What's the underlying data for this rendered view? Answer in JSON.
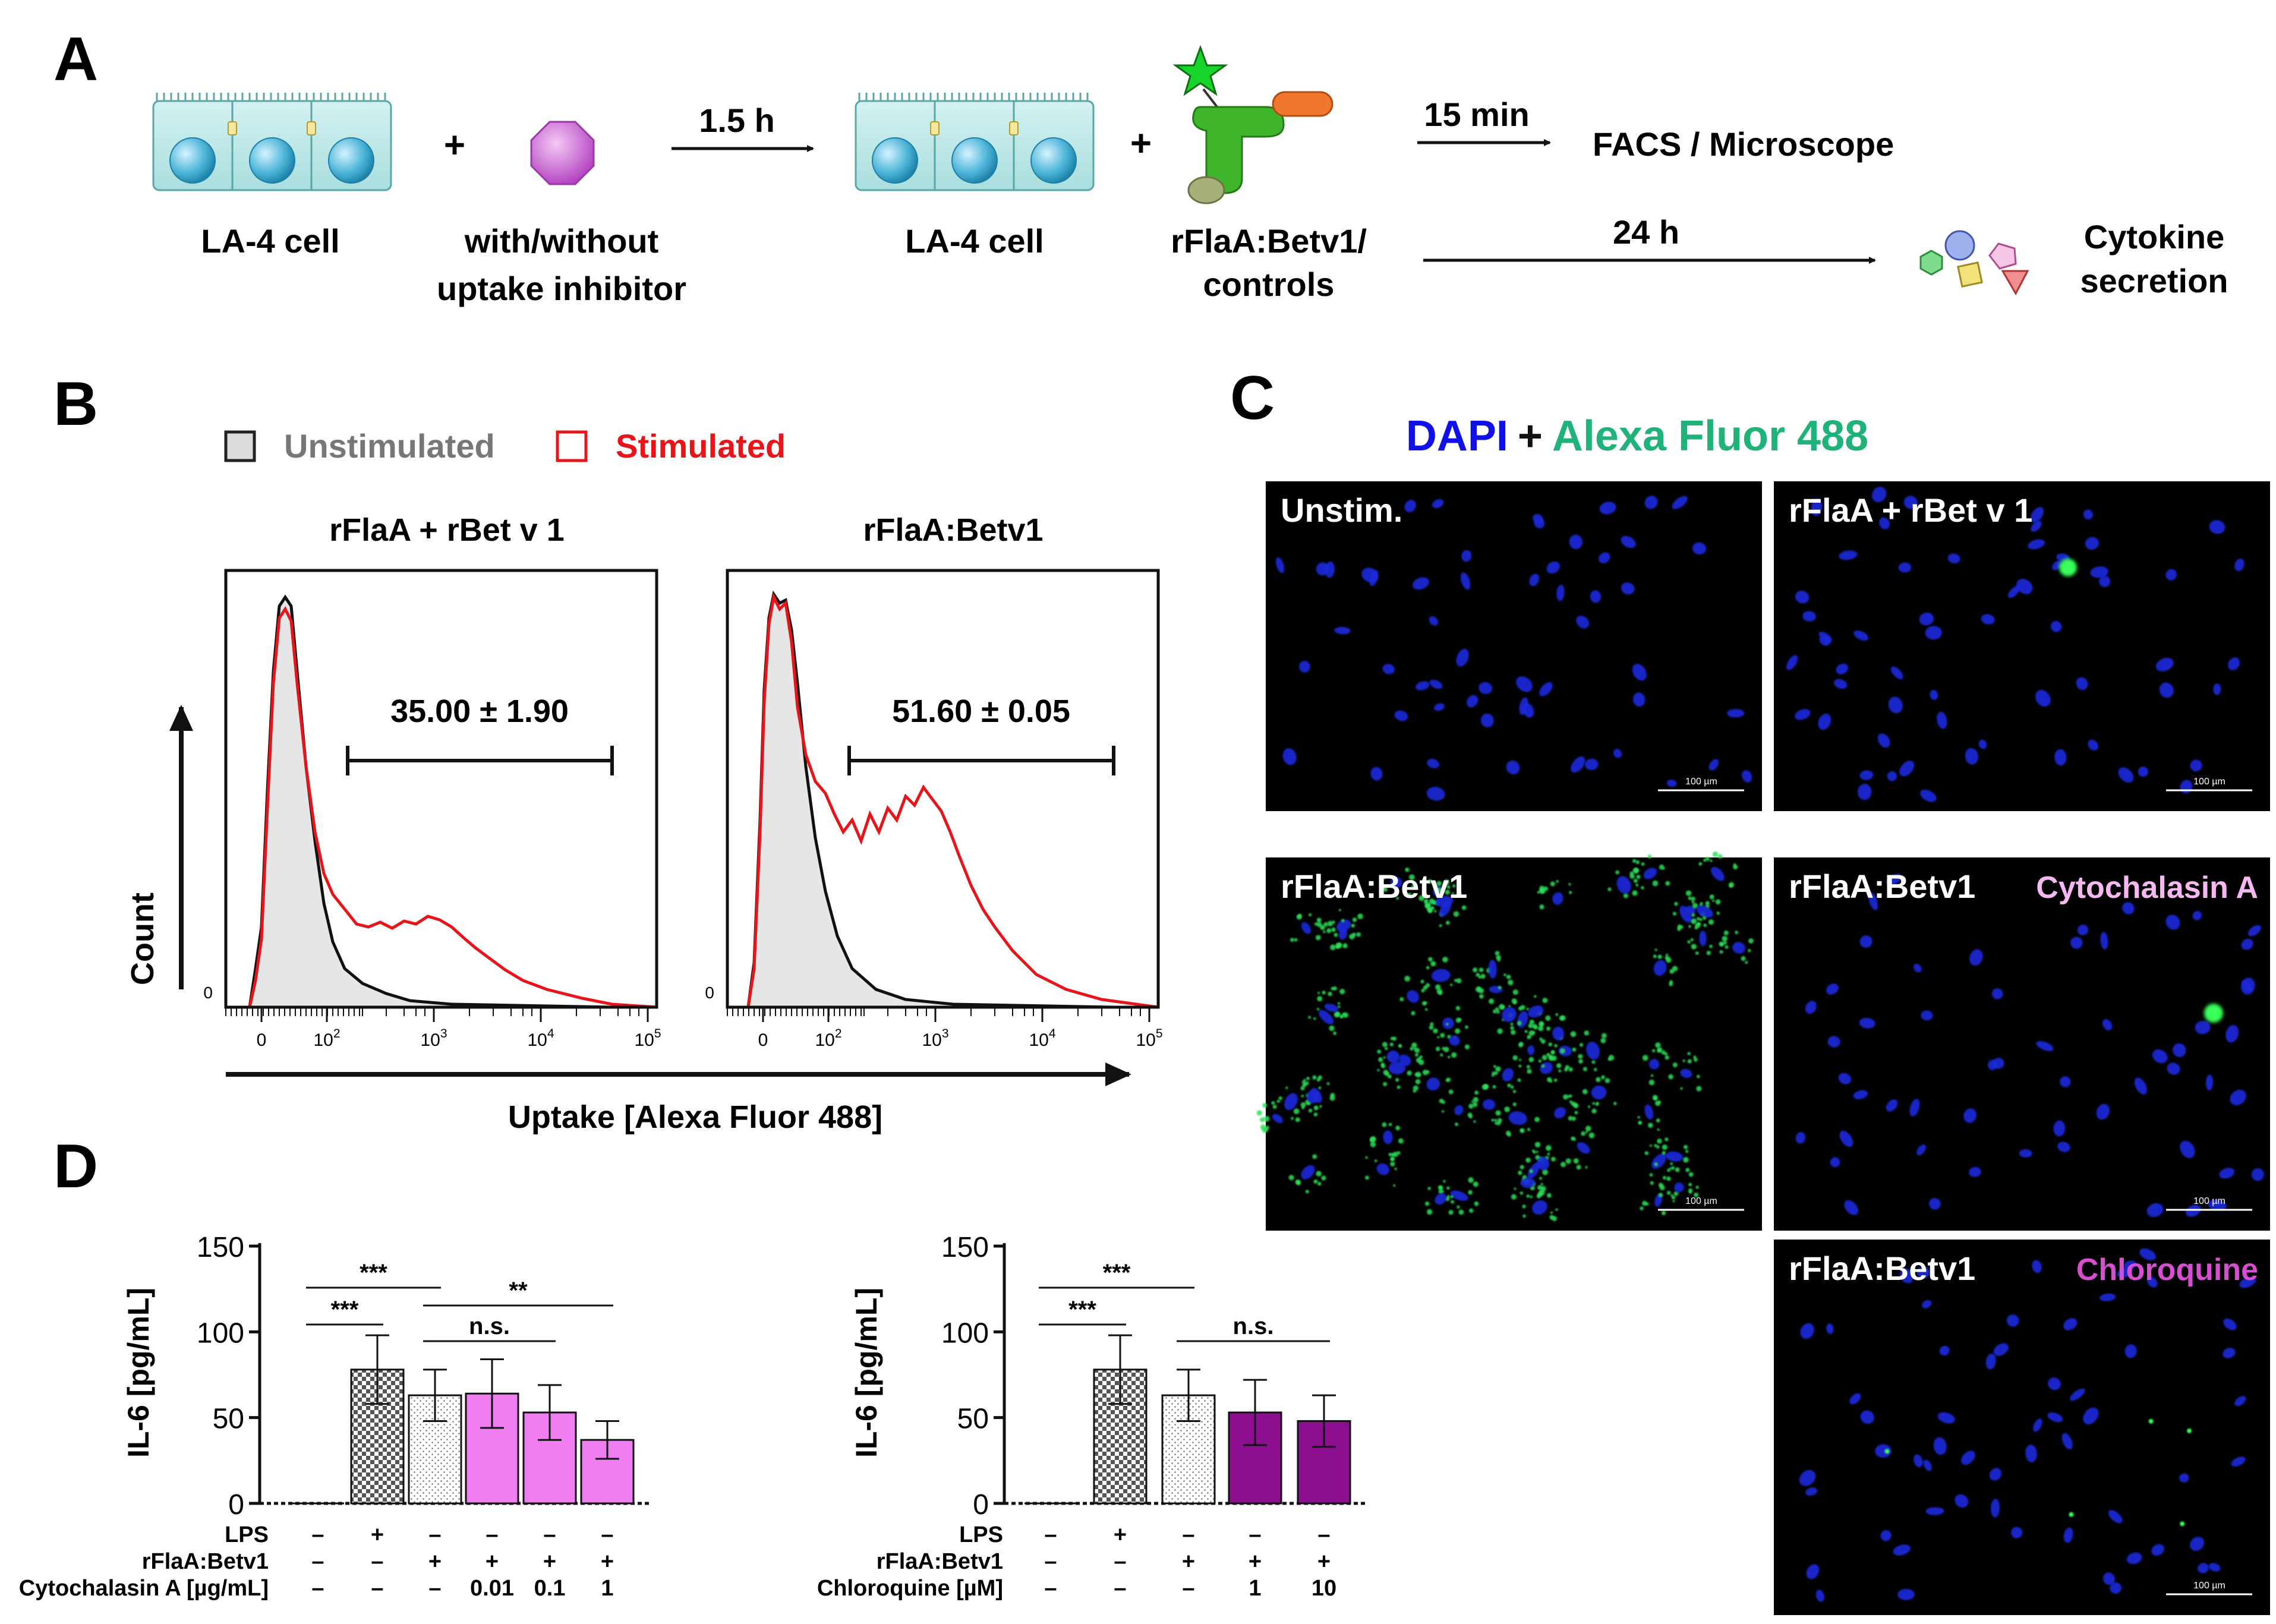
{
  "panel_letters": {
    "a": "A",
    "b": "B",
    "c": "C",
    "d": "D"
  },
  "panel_a": {
    "plus1": "+",
    "plus2": "+",
    "cell_label_1": "LA-4 cell",
    "inhibitor_line1": "with/without",
    "inhibitor_line2": "uptake inhibitor",
    "arrow1_label": "1.5 h",
    "cell_label_2": "LA-4 cell",
    "protein_line1": "rFlaA:Betv1/",
    "protein_line2": "controls",
    "arrow2_label": "15 min",
    "readout1": "FACS / Microscope",
    "arrow3_label": "24 h",
    "readout2_line1": "Cytokine",
    "readout2_line2": "secretion"
  },
  "panel_b": {
    "legend": {
      "unstim": "Unstimulated",
      "stim": "Stimulated"
    },
    "colors": {
      "unstim": "#777777",
      "stim": "#e8141a"
    },
    "y_label": "Count",
    "y_zero": "0",
    "x_label": "Uptake [Alexa Fluor 488]",
    "x_ticks": [
      "0",
      "10",
      "10",
      "10",
      "10"
    ],
    "x_exps": [
      "",
      "2",
      "3",
      "4",
      "5"
    ],
    "plots": [
      {
        "title": "rFlaA + rBet v 1",
        "gate": "35.00 ± 1.90"
      },
      {
        "title": "rFlaA:Betv1",
        "gate": "51.60 ± 0.05"
      }
    ]
  },
  "panel_c": {
    "header_dapi": "DAPI",
    "header_plus": "+",
    "header_alexa": "Alexa Fluor 488",
    "colors": {
      "dapi": "#1010e8",
      "alexa": "#1fb37a",
      "cyto": "#f5b8f0",
      "chloro": "#d64fd0"
    },
    "scale_bar": "100 µm",
    "panels": [
      {
        "label": "Unstim.",
        "extra": ""
      },
      {
        "label": "rFlaA + rBet v 1",
        "extra": ""
      },
      {
        "label": "rFlaA:Betv1",
        "extra": ""
      },
      {
        "label": "rFlaA:Betv1",
        "extra": "Cytochalasin A"
      },
      {
        "label": "rFlaA:Betv1",
        "extra": "Chloroquine"
      }
    ]
  },
  "chart_data": [
    {
      "type": "bar",
      "title": "",
      "xlabel": "",
      "ylabel": "IL-6 [pg/mL]",
      "ylim": [
        0,
        150
      ],
      "yticks": [
        "0",
        "50",
        "100",
        "150"
      ],
      "values": [
        0,
        78,
        63,
        64,
        53,
        37
      ],
      "errors": [
        0,
        20,
        15,
        20,
        16,
        11
      ],
      "fills": [
        "none",
        "check",
        "dots",
        "#f07ef0",
        "#f07ef0",
        "#f07ef0"
      ],
      "table_rows": [
        {
          "label": "LPS",
          "cells": [
            "–",
            "+",
            "–",
            "–",
            "–",
            "–"
          ]
        },
        {
          "label": "rFlaA:Betv1",
          "cells": [
            "–",
            "–",
            "+",
            "+",
            "+",
            "+"
          ]
        },
        {
          "label": "Cytochalasin A [µg/mL]",
          "cells": [
            "–",
            "–",
            "–",
            "0.01",
            "0.1",
            "1"
          ]
        }
      ],
      "significance": [
        {
          "from": 0,
          "to": 1,
          "level": 0,
          "label": "***"
        },
        {
          "from": 0,
          "to": 2,
          "level": 1,
          "label": "***"
        },
        {
          "from": 2,
          "to": 4,
          "level": 0,
          "label": "n.s."
        },
        {
          "from": 2,
          "to": 5,
          "level": 1,
          "label": "**"
        }
      ]
    },
    {
      "type": "bar",
      "title": "",
      "xlabel": "",
      "ylabel": "IL-6 [pg/mL]",
      "ylim": [
        0,
        150
      ],
      "yticks": [
        "0",
        "50",
        "100",
        "150"
      ],
      "values": [
        0,
        78,
        63,
        53,
        48
      ],
      "errors": [
        0,
        20,
        15,
        19,
        15
      ],
      "fills": [
        "none",
        "check",
        "dots",
        "#8b0f8f",
        "#8b0f8f"
      ],
      "table_rows": [
        {
          "label": "LPS",
          "cells": [
            "–",
            "+",
            "–",
            "–",
            "–"
          ]
        },
        {
          "label": "rFlaA:Betv1",
          "cells": [
            "–",
            "–",
            "+",
            "+",
            "+"
          ]
        },
        {
          "label": "Chloroquine [µM]",
          "cells": [
            "–",
            "–",
            "–",
            "1",
            "10"
          ]
        }
      ],
      "significance": [
        {
          "from": 0,
          "to": 1,
          "level": 0,
          "label": "***"
        },
        {
          "from": 0,
          "to": 2,
          "level": 1,
          "label": "***"
        },
        {
          "from": 2,
          "to": 4,
          "level": 0,
          "label": "n.s."
        }
      ]
    }
  ]
}
